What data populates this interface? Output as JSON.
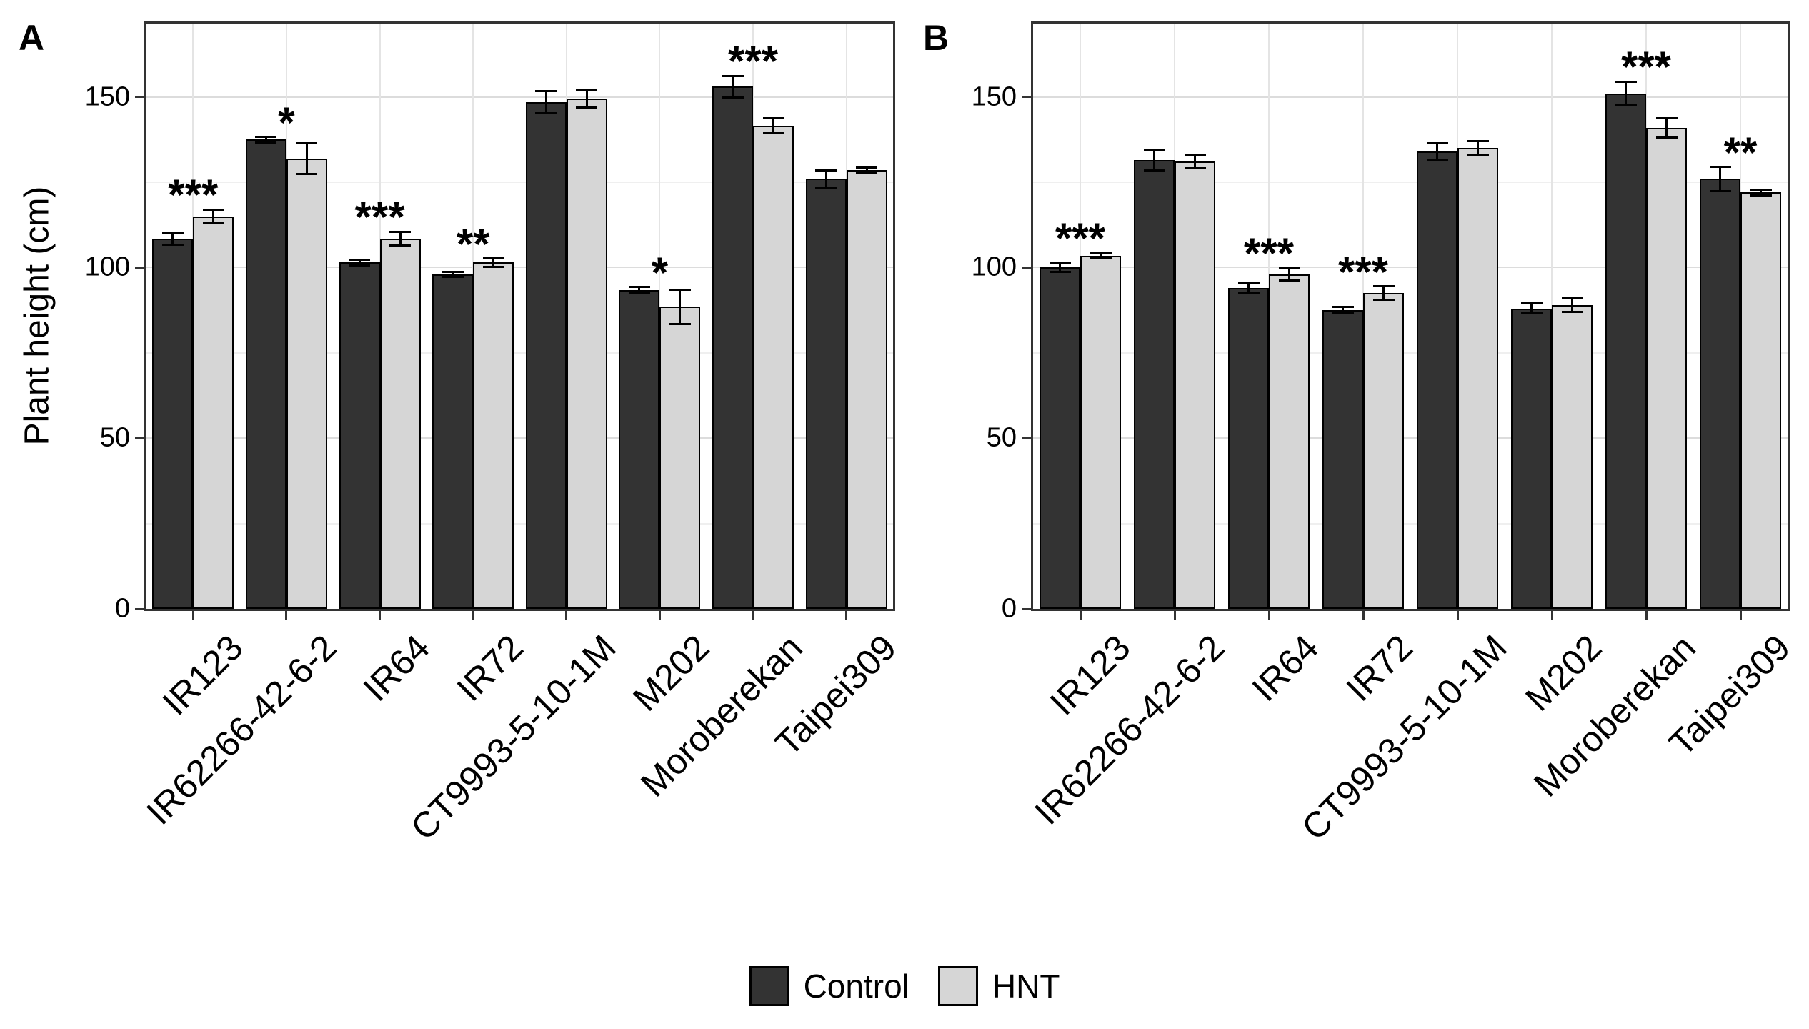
{
  "figure": {
    "background": "#ffffff",
    "ylabel": "Plant height (cm)",
    "legend": [
      {
        "label": "Control",
        "color": "#333333"
      },
      {
        "label": "HNT",
        "color": "#d6d6d6"
      }
    ]
  },
  "chart_data": [
    {
      "type": "bar",
      "panel_label": "A",
      "ylabel": "Plant height (cm)",
      "ylim": [
        0,
        171.5
      ],
      "yticks": [
        0,
        50,
        100,
        150
      ],
      "grid": "major+minor horizontal, major vertical at category centers",
      "legend_position": "bottom",
      "categories": [
        "IR123",
        "IR62266-42-6-2",
        "IR64",
        "IR72",
        "CT9993-5-10-1M",
        "M202",
        "Moroberekan",
        "Taipei309"
      ],
      "series": [
        {
          "name": "Control",
          "color": "#333333",
          "values": [
            108.5,
            137.5,
            101.5,
            98,
            148.5,
            93.5,
            153,
            126
          ],
          "errors": [
            1.8,
            0.8,
            0.8,
            0.8,
            3.2,
            0.8,
            3.2,
            2.5
          ]
        },
        {
          "name": "HNT",
          "color": "#d6d6d6",
          "values": [
            115,
            132,
            108.5,
            101.5,
            149.5,
            88.5,
            141.5,
            128.5
          ],
          "errors": [
            2,
            4.5,
            2,
            1.2,
            2.5,
            5,
            2.2,
            0.8
          ]
        }
      ],
      "significance": [
        "***",
        "*",
        "***",
        "**",
        "",
        "*",
        "***",
        ""
      ]
    },
    {
      "type": "bar",
      "panel_label": "B",
      "ylabel": "Plant height (cm)",
      "ylim": [
        0,
        171.5
      ],
      "yticks": [
        0,
        50,
        100,
        150
      ],
      "grid": "major+minor horizontal, major vertical at category centers",
      "legend_position": "bottom",
      "categories": [
        "IR123",
        "IR62266-42-6-2",
        "IR64",
        "IR72",
        "CT9993-5-10-1M",
        "M202",
        "Moroberekan",
        "Taipei309"
      ],
      "series": [
        {
          "name": "Control",
          "color": "#333333",
          "values": [
            100,
            131.5,
            94,
            87.5,
            134,
            88,
            151,
            126
          ],
          "errors": [
            1.2,
            3,
            1.5,
            1,
            2.5,
            1.5,
            3.5,
            3.5
          ]
        },
        {
          "name": "HNT",
          "color": "#d6d6d6",
          "values": [
            103.5,
            131,
            98,
            92.5,
            135,
            89,
            141,
            122
          ],
          "errors": [
            0.8,
            2,
            1.8,
            2,
            2,
            2,
            2.8,
            0.8
          ]
        }
      ],
      "significance": [
        "***",
        "",
        "***",
        "***",
        "",
        "",
        "***",
        "**"
      ]
    }
  ]
}
